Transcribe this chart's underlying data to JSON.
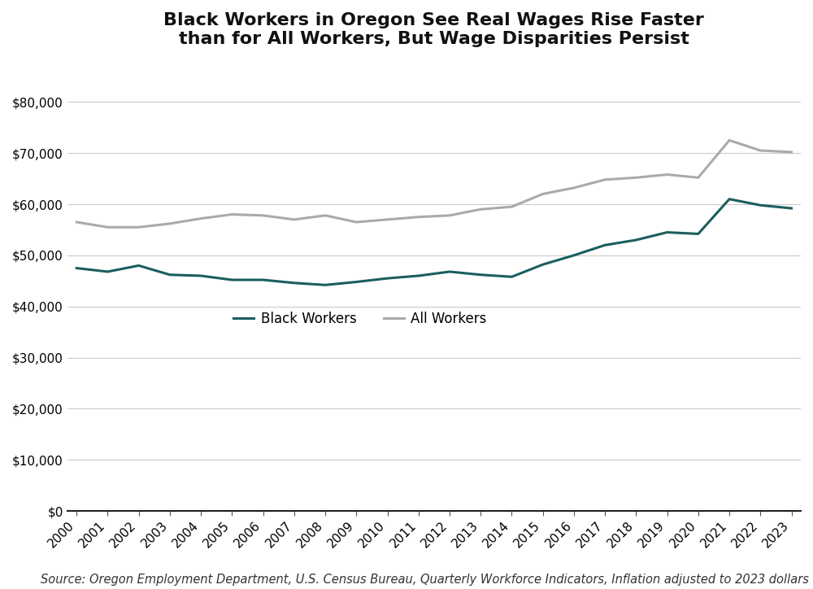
{
  "title": "Black Workers in Oregon See Real Wages Rise Faster\nthan for All Workers, But Wage Disparities Persist",
  "title_fontsize": 16,
  "source_text": "Source: Oregon Employment Department, U.S. Census Bureau, Quarterly Workforce Indicators, Inflation adjusted to 2023 dollars",
  "years": [
    2000,
    2001,
    2002,
    2003,
    2004,
    2005,
    2006,
    2007,
    2008,
    2009,
    2010,
    2011,
    2012,
    2013,
    2014,
    2015,
    2016,
    2017,
    2018,
    2019,
    2020,
    2021,
    2022,
    2023
  ],
  "black_workers": [
    47500,
    46800,
    48000,
    46200,
    46000,
    45200,
    45200,
    44600,
    44200,
    44800,
    45500,
    46000,
    46800,
    46200,
    45800,
    48200,
    50000,
    52000,
    53000,
    54500,
    54200,
    61000,
    59800,
    59200
  ],
  "all_workers": [
    56500,
    55500,
    55500,
    56200,
    57200,
    58000,
    57800,
    57000,
    57800,
    56500,
    57000,
    57500,
    57800,
    59000,
    59500,
    62000,
    63200,
    64800,
    65200,
    65800,
    65200,
    72500,
    70500,
    70200
  ],
  "black_color": "#1a5e5e",
  "all_color": "#aaaaaa",
  "line_width": 2.2,
  "ylim": [
    0,
    88000
  ],
  "yticks": [
    0,
    10000,
    20000,
    30000,
    40000,
    50000,
    60000,
    70000,
    80000
  ],
  "legend_labels": [
    "Black Workers",
    "All Workers"
  ],
  "bg_color": "#ffffff",
  "grid_color": "#cccccc",
  "tick_fontsize": 11,
  "source_fontsize": 10.5
}
